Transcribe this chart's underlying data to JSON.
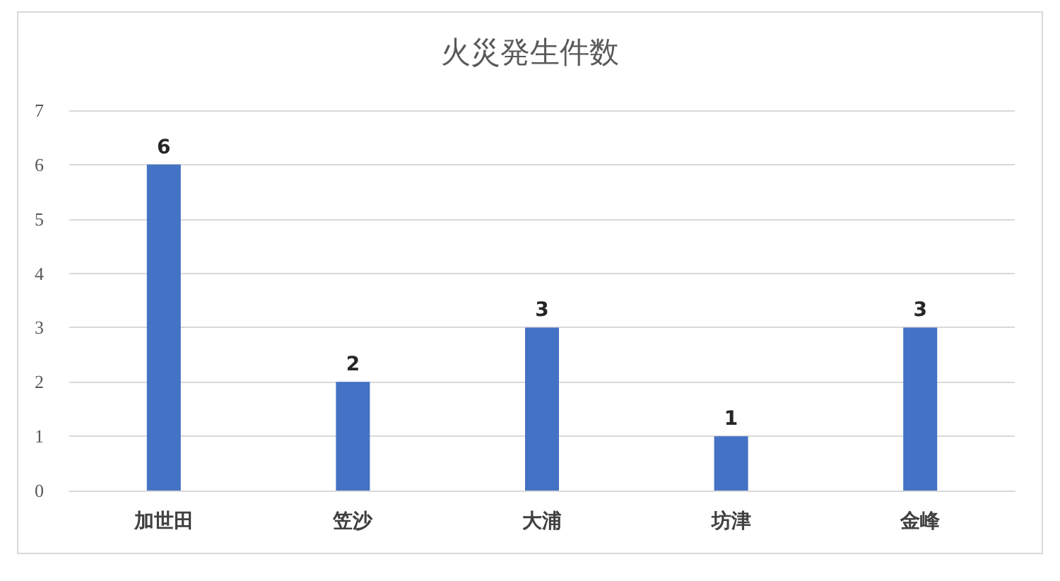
{
  "chart_data": {
    "type": "bar",
    "title": "火災発生件数",
    "categories": [
      "加世田",
      "笠沙",
      "大浦",
      "坊津",
      "金峰"
    ],
    "values": [
      6,
      2,
      3,
      1,
      3
    ],
    "color": "#4472c4",
    "ylim": [
      0,
      7
    ],
    "yticks": [
      0,
      1,
      2,
      3,
      4,
      5,
      6,
      7
    ],
    "grid": "y",
    "data_labels": true
  }
}
